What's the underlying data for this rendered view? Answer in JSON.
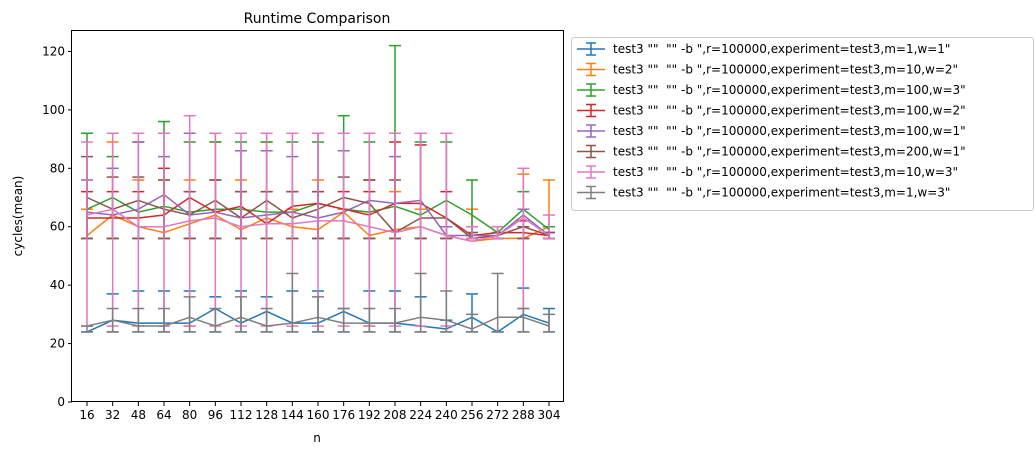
{
  "chart_data": {
    "type": "line",
    "title": "Runtime Comparison",
    "xlabel": "n",
    "ylabel": "cycles(mean)",
    "x": [
      16,
      32,
      48,
      64,
      80,
      96,
      112,
      128,
      144,
      160,
      176,
      192,
      208,
      224,
      240,
      256,
      272,
      288,
      304
    ],
    "ylim": [
      0,
      127
    ],
    "yticks": [
      0,
      20,
      40,
      60,
      80,
      100,
      120
    ],
    "grid": false,
    "legend_position": "outside-right",
    "series": [
      {
        "name": "test3 \"\"  \"\" -b \",r=100000,experiment=test3,m=1,w=1\"",
        "color": "#1f77b4",
        "values": [
          24,
          28,
          27,
          27,
          27,
          32,
          27,
          31,
          27,
          27,
          31,
          27,
          27,
          26,
          25,
          29,
          24,
          30,
          27
        ],
        "err_low": [
          24,
          24,
          24,
          24,
          24,
          24,
          24,
          24,
          24,
          24,
          24,
          24,
          24,
          24,
          24,
          24,
          24,
          24,
          24
        ],
        "err_high": [
          24,
          37,
          38,
          38,
          38,
          36,
          38,
          36,
          38,
          38,
          32,
          38,
          38,
          36,
          28,
          37,
          24,
          39,
          32
        ]
      },
      {
        "name": "test3 \"\"  \"\" -b \",r=100000,experiment=test3,m=10,w=2\"",
        "color": "#ff7f0e",
        "values": [
          57,
          64,
          60,
          58,
          61,
          64,
          59,
          63,
          60,
          59,
          65,
          57,
          59,
          60,
          57,
          55,
          56,
          56,
          60
        ],
        "err_low": [
          56,
          56,
          56,
          56,
          26,
          56,
          56,
          56,
          56,
          56,
          56,
          26,
          56,
          56,
          56,
          56,
          56,
          56,
          56
        ],
        "err_high": [
          66,
          89,
          76,
          76,
          76,
          89,
          76,
          89,
          66,
          76,
          66,
          76,
          72,
          66,
          60,
          66,
          56,
          78,
          76
        ]
      },
      {
        "name": "test3 \"\"  \"\" -b \",r=100000,experiment=test3,m=100,w=3\"",
        "color": "#2ca02c",
        "values": [
          66,
          70,
          65,
          67,
          65,
          66,
          66,
          65,
          65,
          68,
          66,
          65,
          67,
          64,
          69,
          64,
          58,
          66,
          59
        ],
        "err_low": [
          56,
          56,
          56,
          56,
          56,
          56,
          56,
          56,
          56,
          56,
          56,
          56,
          56,
          56,
          56,
          56,
          56,
          56,
          56
        ],
        "err_high": [
          92,
          84,
          89,
          96,
          89,
          89,
          89,
          89,
          89,
          89,
          98,
          89,
          122,
          89,
          89,
          76,
          60,
          72,
          60
        ]
      },
      {
        "name": "test3 \"\"  \"\" -b \",r=100000,experiment=test3,m=100,w=2\"",
        "color": "#d62728",
        "values": [
          63,
          63,
          63,
          64,
          70,
          65,
          67,
          61,
          67,
          68,
          66,
          64,
          68,
          68,
          63,
          57,
          58,
          58,
          57
        ],
        "err_low": [
          56,
          56,
          56,
          56,
          56,
          56,
          56,
          56,
          56,
          56,
          56,
          56,
          56,
          56,
          56,
          56,
          56,
          56,
          56
        ],
        "err_high": [
          72,
          72,
          72,
          80,
          72,
          76,
          72,
          72,
          72,
          72,
          72,
          72,
          89,
          88,
          72,
          60,
          60,
          62,
          58
        ]
      },
      {
        "name": "test3 \"\"  \"\" -b \",r=100000,experiment=test3,m=100,w=1\"",
        "color": "#9467bd",
        "values": [
          65,
          64,
          66,
          71,
          64,
          65,
          63,
          64,
          65,
          63,
          65,
          69,
          68,
          69,
          57,
          57,
          57,
          64,
          57
        ],
        "err_low": [
          56,
          56,
          56,
          56,
          56,
          56,
          56,
          56,
          56,
          56,
          56,
          56,
          56,
          56,
          56,
          56,
          56,
          56,
          56
        ],
        "err_high": [
          76,
          80,
          89,
          84,
          92,
          92,
          86,
          86,
          84,
          92,
          86,
          76,
          84,
          92,
          60,
          58,
          58,
          66,
          58
        ]
      },
      {
        "name": "test3 \"\"  \"\" -b \",r=100000,experiment=test3,m=200,w=1\"",
        "color": "#8c564b",
        "values": [
          70,
          66,
          69,
          66,
          64,
          69,
          63,
          69,
          63,
          66,
          70,
          68,
          58,
          63,
          63,
          56,
          57,
          60,
          57
        ],
        "err_low": [
          56,
          56,
          56,
          56,
          56,
          56,
          56,
          56,
          56,
          56,
          56,
          56,
          56,
          56,
          56,
          56,
          56,
          56,
          56
        ],
        "err_high": [
          84,
          77,
          77,
          76,
          72,
          76,
          72,
          72,
          72,
          72,
          77,
          76,
          76,
          92,
          92,
          58,
          58,
          60,
          58
        ]
      },
      {
        "name": "test3 \"\"  \"\" -b \",r=100000,experiment=test3,m=10,w=3\"",
        "color": "#e377c2",
        "values": [
          64,
          66,
          60,
          60,
          62,
          63,
          60,
          61,
          61,
          62,
          62,
          60,
          58,
          60,
          57,
          55,
          57,
          63,
          57
        ],
        "err_low": [
          26,
          26,
          26,
          26,
          26,
          26,
          26,
          26,
          26,
          26,
          26,
          26,
          26,
          26,
          26,
          56,
          56,
          32,
          56
        ],
        "err_high": [
          89,
          92,
          92,
          92,
          98,
          92,
          92,
          92,
          92,
          92,
          92,
          92,
          92,
          92,
          92,
          60,
          60,
          80,
          64
        ]
      },
      {
        "name": "test3 \"\"  \"\" -b \",r=100000,experiment=test3,m=1,w=3\"",
        "color": "#7f7f7f",
        "values": [
          26,
          28,
          26,
          26,
          29,
          26,
          29,
          26,
          27,
          29,
          27,
          27,
          27,
          29,
          28,
          25,
          29,
          29,
          26
        ],
        "err_low": [
          24,
          24,
          24,
          24,
          24,
          24,
          24,
          24,
          24,
          24,
          24,
          24,
          24,
          24,
          24,
          24,
          24,
          24,
          24
        ],
        "err_high": [
          26,
          32,
          32,
          32,
          36,
          32,
          36,
          32,
          44,
          36,
          32,
          32,
          32,
          44,
          38,
          30,
          44,
          32,
          30
        ]
      }
    ]
  }
}
